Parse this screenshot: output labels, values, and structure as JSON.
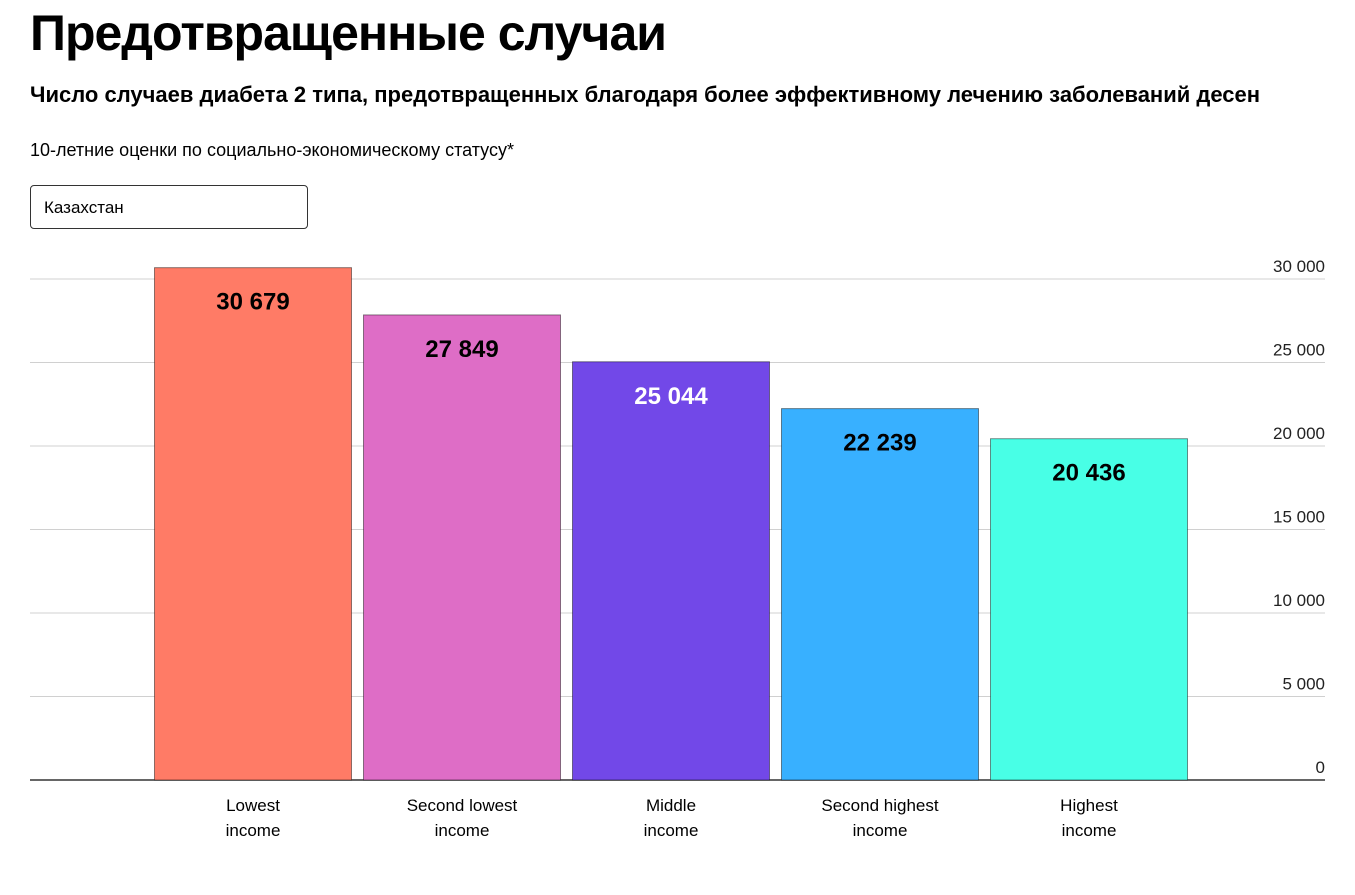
{
  "controls": {
    "country": "Казахстан"
  },
  "chart_data": {
    "type": "bar",
    "title": "Предотвращенные случаи",
    "subtitle": "Число случаев диабета 2 типа, предотвращенных благодаря более эффективному лечению заболеваний десен",
    "note": "10-летние оценки по социально-экономическому статусу*",
    "categories": [
      "Lowest\nincome",
      "Second lowest\nincome",
      "Middle\nincome",
      "Second highest\nincome",
      "Highest\nincome"
    ],
    "values": [
      30679,
      27849,
      25044,
      22239,
      20436
    ],
    "value_labels": [
      "30 679",
      "27 849",
      "25 044",
      "22 239",
      "20 436"
    ],
    "colors": [
      "#ff7b66",
      "#de6dc6",
      "#7248e8",
      "#38b0ff",
      "#48ffe6"
    ],
    "label_colors": [
      "#000000",
      "#000000",
      "#ffffff",
      "#000000",
      "#000000"
    ],
    "ylim": [
      0,
      30000
    ],
    "yticks": [
      0,
      {
        "value": 5000,
        "label": "5 000"
      },
      {
        "value": 10000,
        "label": "10 000"
      },
      {
        "value": 15000,
        "label": "15 000"
      },
      {
        "value": 20000,
        "label": "20 000"
      },
      {
        "value": 25000,
        "label": "25 000"
      },
      {
        "value": 30000,
        "label": "30 000"
      }
    ],
    "grid": true
  }
}
